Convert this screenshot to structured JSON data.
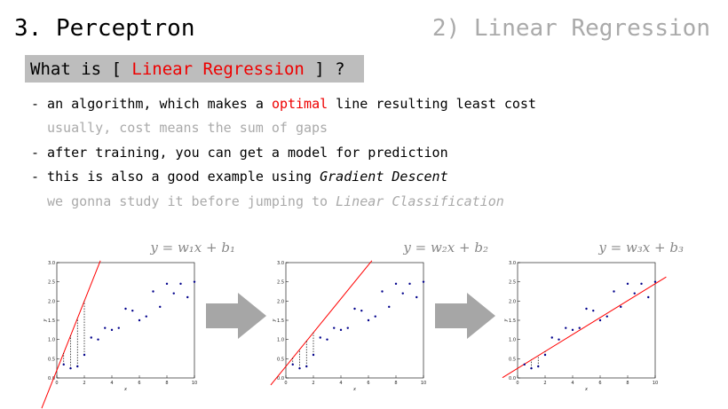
{
  "header": {
    "title": "3. Perceptron",
    "section": "2) Linear Regression"
  },
  "question": {
    "prefix": "What is [ ",
    "highlight": "Linear Regression",
    "suffix": " ] ?"
  },
  "bullets": [
    {
      "tone": "main",
      "parts": [
        {
          "text": "- an algorithm, which makes a "
        },
        {
          "text": "optimal",
          "emph": "red"
        },
        {
          "text": " line resulting least cost"
        }
      ]
    },
    {
      "tone": "note",
      "parts": [
        {
          "text": "usually, cost means the sum of gaps"
        }
      ]
    },
    {
      "tone": "main",
      "parts": [
        {
          "text": "- after training, you can get a model for prediction"
        }
      ]
    },
    {
      "tone": "main",
      "parts": [
        {
          "text": "- this is also a good example using "
        },
        {
          "text": "Gradient Descent",
          "emph": "italic"
        }
      ]
    },
    {
      "tone": "note",
      "parts": [
        {
          "text": "we gonna study it before jumping to "
        },
        {
          "text": "Linear Classification",
          "emph": "italic"
        }
      ]
    }
  ],
  "figures": {
    "type": "scatter",
    "xlabel": "x",
    "ylabel": "y",
    "xlim": [
      0,
      10
    ],
    "ylim": [
      0,
      3
    ],
    "xticks": [
      0,
      2,
      4,
      6,
      8,
      10
    ],
    "yticks": [
      {
        "value": 0,
        "label": "0.0"
      },
      {
        "value": 0.5,
        "label": "0.5"
      },
      {
        "value": 1,
        "label": "1.0"
      },
      {
        "value": 1.5,
        "label": "1.5"
      },
      {
        "value": 2,
        "label": "2.0"
      },
      {
        "value": 2.5,
        "label": "2.5"
      },
      {
        "value": 3,
        "label": "3.0"
      }
    ],
    "point_color": "#00008b",
    "line_color": "#ff0000",
    "scatter": {
      "x": [
        0.5,
        1.0,
        1.5,
        2.0,
        2.5,
        3.0,
        3.5,
        4.0,
        4.5,
        5.0,
        5.5,
        6.0,
        6.5,
        7.0,
        7.5,
        8.0,
        8.5,
        9.0,
        9.5,
        10.0
      ],
      "y": [
        0.35,
        0.25,
        0.3,
        0.6,
        1.05,
        1.0,
        1.3,
        1.25,
        1.3,
        1.8,
        1.75,
        1.5,
        1.6,
        2.25,
        1.85,
        2.45,
        2.2,
        2.45,
        2.1,
        2.5
      ]
    },
    "panels": [
      {
        "formula": "y = w₁x + b₁",
        "slope": 0.9,
        "intercept": 0.2,
        "residuals": true
      },
      {
        "formula": "y = w₂x + b₂",
        "slope": 0.44,
        "intercept": 0.3,
        "residuals": true
      },
      {
        "formula": "y = w₃x + b₃",
        "slope": 0.22,
        "intercept": 0.25,
        "residuals": true
      }
    ]
  }
}
